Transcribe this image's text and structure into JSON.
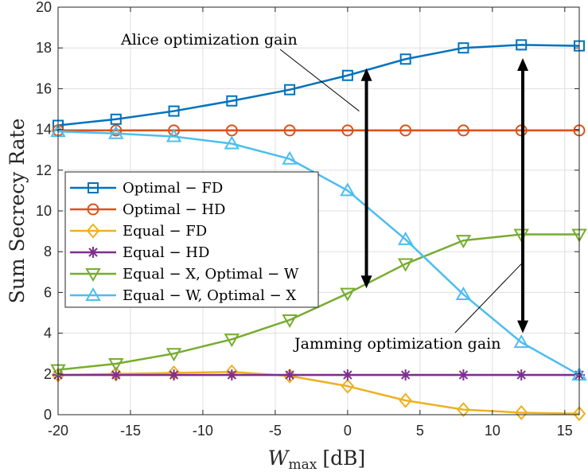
{
  "chart_data": {
    "type": "line",
    "title": "",
    "xlabel_main": "W",
    "xlabel_sub": "max",
    "xlabel_unit": "[dB]",
    "ylabel": "Sum Secrecy Rate",
    "xlim": [
      -20,
      16
    ],
    "ylim": [
      0,
      20
    ],
    "grid": true,
    "legend_position": "middle-left",
    "x": [
      -20,
      -16,
      -12,
      -8,
      -4,
      0,
      4,
      8,
      12,
      16
    ],
    "x_tick_labels": [
      "-20",
      "-15",
      "-10",
      "-5",
      "0",
      "5",
      "10",
      "15"
    ],
    "x_ticks": [
      -20,
      -15,
      -10,
      -5,
      0,
      5,
      10,
      15
    ],
    "y_ticks": [
      0,
      2,
      4,
      6,
      8,
      10,
      12,
      14,
      16,
      18,
      20
    ],
    "y_tick_labels": [
      "0",
      "2",
      "4",
      "6",
      "8",
      "10",
      "12",
      "14",
      "16",
      "18",
      "20"
    ],
    "series": [
      {
        "name": "Optimal − FD",
        "color": "#0072BD",
        "marker": "square",
        "values": [
          14.2,
          14.5,
          14.9,
          15.4,
          15.95,
          16.65,
          17.45,
          18.0,
          18.15,
          18.1
        ]
      },
      {
        "name": "Optimal − HD",
        "color": "#D95319",
        "marker": "circle",
        "values": [
          13.95,
          13.95,
          13.95,
          13.95,
          13.95,
          13.95,
          13.95,
          13.95,
          13.95,
          13.95
        ]
      },
      {
        "name": "Equal − FD",
        "color": "#EDB120",
        "marker": "diamond",
        "values": [
          1.95,
          2.0,
          2.05,
          2.1,
          1.9,
          1.4,
          0.7,
          0.25,
          0.1,
          0.05
        ]
      },
      {
        "name": "Equal − HD",
        "color": "#7E2F8E",
        "marker": "asterisk",
        "values": [
          1.95,
          1.95,
          1.95,
          1.95,
          1.95,
          1.95,
          1.95,
          1.95,
          1.95,
          1.95
        ]
      },
      {
        "name": "Equal − X, Optimal − W",
        "color": "#77AC30",
        "marker": "triangle-down",
        "values": [
          2.2,
          2.5,
          3.0,
          3.7,
          4.65,
          5.95,
          7.4,
          8.55,
          8.85,
          8.85
        ]
      },
      {
        "name": "Equal − W, Optimal − X",
        "color": "#4DBEEE",
        "marker": "triangle-up",
        "values": [
          13.9,
          13.8,
          13.65,
          13.3,
          12.55,
          11.0,
          8.6,
          5.9,
          3.55,
          1.95
        ]
      }
    ],
    "arrows": [
      {
        "x": 1.3,
        "y_from": 6.2,
        "y_to": 17.0
      },
      {
        "x": 12.1,
        "y_from": 4.0,
        "y_to": 17.5
      }
    ],
    "annotations": [
      {
        "text": "Alice optimization gain",
        "leader_to_x": 0.8,
        "leader_to_y": 14.9
      },
      {
        "text": "Jamming optimization gain",
        "leader_to_x": 12.0,
        "leader_to_y": 7.4
      }
    ]
  }
}
